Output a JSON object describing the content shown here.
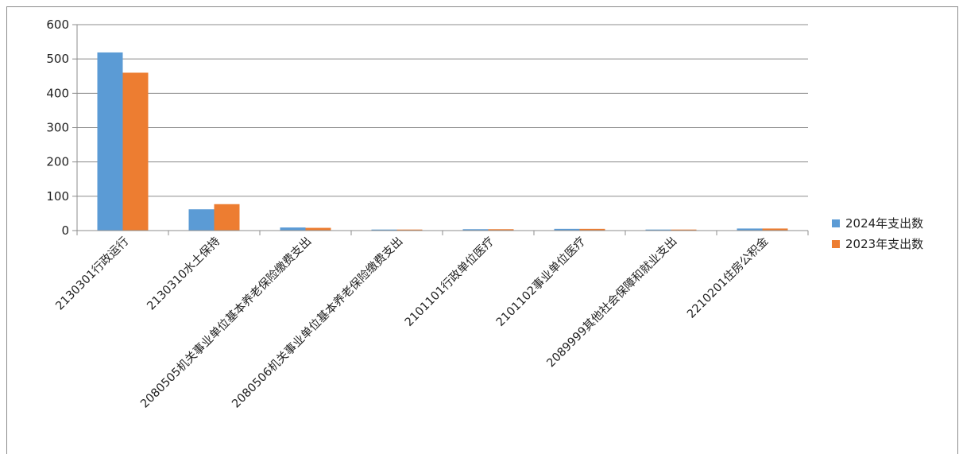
{
  "chart_data": {
    "type": "bar",
    "title": "",
    "xlabel": "",
    "ylabel": "",
    "ylim": [
      0,
      600
    ],
    "yticks": [
      0,
      100,
      200,
      300,
      400,
      500,
      600
    ],
    "grid": true,
    "legend_position": "right",
    "categories": [
      "2130301行政运行",
      "2130310水土保持",
      "2080505机关事业单位基本养老保险缴费支出",
      "2080506机关事业单位基本养老保险缴费支出",
      "2101101行政单位医疗",
      "2101102事业单位医疗",
      "2089999其他社会保障和就业支出",
      "2210201住房公积金"
    ],
    "series": [
      {
        "name": "2024年支出数",
        "color": "#5b9bd5",
        "values": [
          519,
          62,
          9,
          3,
          4,
          5,
          3,
          6
        ]
      },
      {
        "name": "2023年支出数",
        "color": "#ed7d31",
        "values": [
          460,
          77,
          8,
          3,
          4,
          5,
          3,
          6
        ]
      }
    ]
  }
}
